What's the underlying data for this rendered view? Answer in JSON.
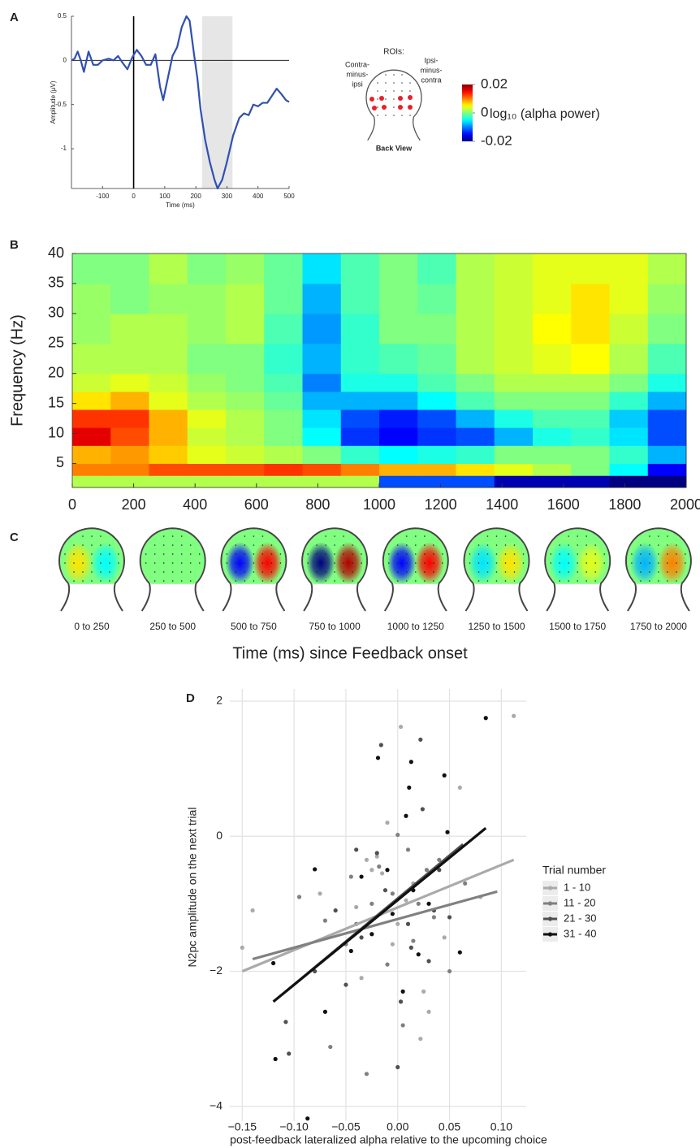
{
  "chart_data": [
    {
      "type": "line",
      "panel_label": "A",
      "ylabel": "Amplitude (μV)",
      "xlabel": "Time (ms)",
      "color": "#3050b0",
      "x": [
        -200,
        -190,
        -180,
        -170,
        -160,
        -145,
        -130,
        -115,
        -100,
        -80,
        -65,
        -50,
        -35,
        -20,
        -5,
        10,
        25,
        40,
        55,
        70,
        85,
        95,
        110,
        125,
        140,
        155,
        170,
        180,
        195,
        205,
        215,
        230,
        245,
        260,
        270,
        285,
        300,
        320,
        340,
        355,
        370,
        385,
        400,
        415,
        430,
        445,
        460,
        475,
        490,
        500
      ],
      "values": [
        0,
        0.02,
        0.1,
        0,
        -0.13,
        0.1,
        -0.05,
        -0.05,
        0,
        0.02,
        0,
        0.05,
        -0.03,
        -0.1,
        0.03,
        0.12,
        0.05,
        -0.05,
        -0.05,
        0.07,
        -0.3,
        -0.45,
        -0.2,
        0.05,
        0.15,
        0.38,
        0.5,
        0.45,
        0.05,
        -0.2,
        -0.55,
        -0.9,
        -1.15,
        -1.35,
        -1.45,
        -1.35,
        -1.15,
        -0.85,
        -0.65,
        -0.6,
        -0.62,
        -0.5,
        -0.52,
        -0.48,
        -0.48,
        -0.4,
        -0.32,
        -0.38,
        -0.45,
        -0.47
      ],
      "xlim": [
        -200,
        500
      ],
      "xticks": [
        -100,
        0,
        100,
        200,
        300,
        400,
        500
      ],
      "ylim": [
        -1.45,
        0.5
      ],
      "yticks": [
        -1,
        -0.5,
        0,
        0.5
      ],
      "highlight": [
        220,
        318
      ],
      "zero_lines": true,
      "roi_title": "ROIs:",
      "roi_left": [
        "Contra-",
        "minus-",
        "ipsi"
      ],
      "roi_right": [
        "Ipsi-",
        "minus-",
        "contra"
      ],
      "roi_caption": "Back View",
      "colorbar": {
        "clim": [
          -0.02,
          0.02
        ],
        "ticks": [
          0.02,
          0,
          -0.02
        ],
        "label": "log₁₀ (alpha power)"
      }
    },
    {
      "type": "heatmap",
      "panel_label": "B",
      "ylabel": "Frequency (Hz)",
      "xbins": [
        0,
        125,
        250,
        375,
        500,
        625,
        750,
        875,
        1000,
        1125,
        1250,
        1375,
        1500,
        1625,
        1750,
        1875,
        2000
      ],
      "ybins": [
        1,
        3,
        5,
        8,
        11,
        14,
        17,
        20,
        25,
        30,
        35,
        40
      ],
      "values": [
        [
          0.002,
          0.002,
          0.002,
          0.002,
          0.002,
          0.002,
          0.002,
          0.002,
          -0.012,
          -0.012,
          -0.012,
          -0.018,
          -0.018,
          -0.018,
          -0.02,
          -0.02
        ],
        [
          0.01,
          0.01,
          0.012,
          0.012,
          0.012,
          0.013,
          0.012,
          0.01,
          0.008,
          0.008,
          0.006,
          0.004,
          0.002,
          0,
          -0.005,
          -0.015
        ],
        [
          0.008,
          0.009,
          0.007,
          0.004,
          0.003,
          0.002,
          0,
          -0.003,
          -0.005,
          -0.004,
          -0.003,
          0,
          0,
          0,
          -0.003,
          -0.008
        ],
        [
          0.016,
          0.012,
          0.008,
          0.003,
          0.002,
          0,
          -0.005,
          -0.013,
          -0.015,
          -0.013,
          -0.012,
          -0.008,
          -0.004,
          -0.003,
          -0.006,
          -0.012
        ],
        [
          0.013,
          0.013,
          0.008,
          0.004,
          0.002,
          0,
          -0.006,
          -0.012,
          -0.014,
          -0.012,
          -0.008,
          -0.004,
          -0.002,
          -0.002,
          -0.007,
          -0.012
        ],
        [
          0.006,
          0.008,
          0.004,
          0.002,
          0.001,
          -0.001,
          -0.008,
          -0.008,
          -0.008,
          -0.005,
          -0.002,
          0,
          0,
          0,
          -0.003,
          -0.008
        ],
        [
          0.003,
          0.004,
          0.003,
          0.001,
          0,
          -0.002,
          -0.01,
          -0.004,
          -0.004,
          -0.002,
          0,
          0.002,
          0.002,
          0.002,
          0,
          -0.004
        ],
        [
          0.002,
          0.002,
          0.002,
          0,
          0,
          -0.003,
          -0.008,
          -0.003,
          -0.002,
          -0.001,
          0.002,
          0.003,
          0.004,
          0.005,
          0.002,
          -0.002
        ],
        [
          0.001,
          0.002,
          0.002,
          0.001,
          0.002,
          -0.002,
          -0.009,
          -0.003,
          0,
          0,
          0.002,
          0.003,
          0.005,
          0.006,
          0.003,
          0
        ],
        [
          0.001,
          0,
          0.001,
          0.001,
          0.002,
          -0.001,
          -0.008,
          -0.002,
          0,
          -0.001,
          0.002,
          0.003,
          0.004,
          0.006,
          0.004,
          0.001
        ],
        [
          0,
          0,
          0.002,
          0,
          0.001,
          -0.001,
          -0.006,
          -0.002,
          0,
          -0.002,
          0.002,
          0.003,
          0.004,
          0.004,
          0.004,
          0.002
        ]
      ],
      "xlim": [
        0,
        2000
      ],
      "xticks": [
        0,
        200,
        400,
        600,
        800,
        1000,
        1200,
        1400,
        1600,
        1800,
        2000
      ],
      "ylim": [
        1,
        40
      ],
      "yticks": [
        5,
        10,
        15,
        20,
        25,
        30,
        35,
        40
      ]
    },
    {
      "type": "topomap",
      "panel_label": "C",
      "xlabel": "Time (ms) since Feedback onset",
      "labels": [
        "0 to 250",
        "250 to 500",
        "500 to 750",
        "750 to 1000",
        "1000 to 1250",
        "1250 to 1500",
        "1500 to 1750",
        "1750 to 2000"
      ],
      "left": [
        0.006,
        0,
        -0.015,
        -0.02,
        -0.015,
        -0.006,
        -0.005,
        -0.008
      ],
      "right": [
        -0.005,
        0,
        0.015,
        0.018,
        0.015,
        0.006,
        0.004,
        0.01
      ]
    },
    {
      "type": "scatter",
      "panel_label": "D",
      "xlabel": "post-feedback lateralized alpha relative to the upcoming choice",
      "ylabel": "N2pc amplitude on the next trial",
      "legend_title": "Trial number",
      "legend": "right",
      "grid": true,
      "xlim": [
        -0.162,
        0.124
      ],
      "ylim": [
        -4.22,
        2.18
      ],
      "xticks": [
        {
          "value": -0.15,
          "label": "−0.15"
        },
        {
          "value": -0.1,
          "label": "−0.10"
        },
        {
          "value": -0.05,
          "label": "−0.05"
        },
        {
          "value": 0,
          "label": "0.00"
        },
        0.05,
        {
          "value": 0.1,
          "label": "0.10"
        }
      ],
      "yticks": [
        {
          "value": -4,
          "label": "−4"
        },
        {
          "value": -2,
          "label": "−2"
        },
        0,
        2
      ],
      "series": [
        {
          "name": "1 - 10",
          "color": "#aaaaaa",
          "x": [
            -0.15,
            -0.14,
            -0.075,
            -0.04,
            -0.03,
            -0.02,
            -0.015,
            -0.01,
            -0.005,
            0.003,
            0.008,
            0.015,
            0.022,
            0.025,
            0.03,
            0.045,
            0.06,
            0.08,
            0.112,
            -0.025,
            0,
            -0.035
          ],
          "values": [
            -1.65,
            -1.1,
            -0.85,
            -1.05,
            -0.35,
            -0.3,
            -0.55,
            0.2,
            -1.6,
            1.62,
            -0.95,
            -0.7,
            -3,
            -2.3,
            -2.6,
            -1.5,
            0.72,
            -0.9,
            1.78,
            -0.5,
            -1.3,
            -2.1
          ],
          "fit_x": [
            -0.15,
            0.112
          ],
          "fit_y": [
            -2,
            -0.35
          ]
        },
        {
          "name": "11 - 20",
          "color": "#808080",
          "x": [
            -0.095,
            -0.07,
            -0.065,
            -0.05,
            -0.045,
            -0.03,
            -0.025,
            -0.018,
            -0.01,
            -0.005,
            0.005,
            0.01,
            0.02,
            0.028,
            0.035,
            0.04,
            0.05,
            0.065,
            0,
            -0.04,
            0.015
          ],
          "values": [
            -0.9,
            -1.25,
            -3.12,
            -1.6,
            -0.6,
            -3.52,
            -1,
            -0.45,
            -1.9,
            -0.85,
            -2.8,
            -0.2,
            -1,
            -0.5,
            -1.2,
            -0.35,
            -2,
            -0.7,
            0.02,
            -1.3,
            -1.55
          ],
          "fit_x": [
            -0.14,
            0.096
          ],
          "fit_y": [
            -1.82,
            -0.82
          ]
        },
        {
          "name": "21 - 30",
          "color": "#505050",
          "x": [
            -0.105,
            -0.108,
            -0.08,
            -0.06,
            -0.04,
            -0.035,
            -0.02,
            -0.016,
            -0.012,
            0,
            0.003,
            0.013,
            0.022,
            0.024,
            0.03,
            0.035,
            0.04,
            0.05,
            -0.05,
            0.01
          ],
          "values": [
            -3.22,
            -2.75,
            -2,
            -1.1,
            -0.2,
            -1.5,
            -0.25,
            1.35,
            -0.8,
            -3.42,
            -2.45,
            -1.65,
            1.43,
            0.4,
            -1.85,
            -1.1,
            -0.5,
            -1.2,
            -2.2,
            -1.3
          ],
          "fit_x": [
            -0.108,
            0.063
          ],
          "fit_y": [
            -2.3,
            -0.12
          ]
        },
        {
          "name": "31 - 40",
          "color": "#111111",
          "x": [
            -0.12,
            -0.118,
            -0.087,
            -0.08,
            -0.07,
            -0.045,
            -0.035,
            -0.025,
            -0.019,
            -0.01,
            0.005,
            0.008,
            0.011,
            0.013,
            0.02,
            0.03,
            0.045,
            0.048,
            0.06,
            0.085,
            -0.005,
            0.015
          ],
          "values": [
            -1.88,
            -3.3,
            -4.18,
            -0.49,
            -2.6,
            -1.7,
            -0.6,
            -1.45,
            1.16,
            -0.5,
            -2.3,
            0.3,
            0.72,
            1.1,
            -1.75,
            -1,
            0.9,
            0.06,
            -1.72,
            1.75,
            -1.15,
            -0.8
          ],
          "fit_x": [
            -0.12,
            0.085
          ],
          "fit_y": [
            -2.45,
            0.12
          ]
        }
      ]
    }
  ]
}
